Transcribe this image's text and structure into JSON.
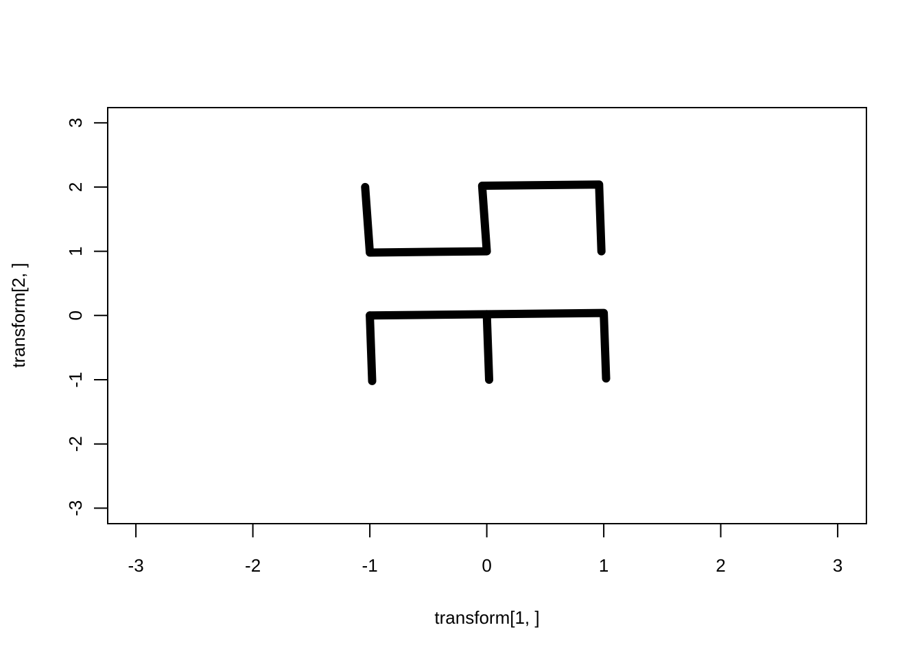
{
  "chart_data": {
    "type": "line",
    "title": "",
    "xlabel": "transform[1, ]",
    "ylabel": "transform[2, ]",
    "xlim": [
      -3,
      3
    ],
    "ylim": [
      -3,
      3
    ],
    "x_ticks": [
      "-3",
      "-2",
      "-1",
      "0",
      "1",
      "2",
      "3"
    ],
    "y_ticks": [
      "-3",
      "-2",
      "-1",
      "0",
      "1",
      "2",
      "3"
    ],
    "grid": false,
    "legend": "none",
    "line_color": "#000000",
    "series": [
      {
        "points": [
          {
            "x": -1.04,
            "y": 2.0
          },
          {
            "x": -1.0,
            "y": 0.98
          },
          {
            "x": 0.0,
            "y": 1.0
          },
          {
            "x": -0.04,
            "y": 2.02
          },
          {
            "x": 0.96,
            "y": 2.04
          },
          {
            "x": 0.98,
            "y": 1.0
          }
        ]
      },
      {
        "points": [
          {
            "x": -1.0,
            "y": 0.0
          },
          {
            "x": 1.0,
            "y": 0.04
          },
          {
            "x": 1.02,
            "y": -0.98
          }
        ]
      },
      {
        "points": [
          {
            "x": -1.0,
            "y": 0.0
          },
          {
            "x": -0.98,
            "y": -1.02
          }
        ]
      },
      {
        "points": [
          {
            "x": 0.0,
            "y": 0.02
          },
          {
            "x": 0.02,
            "y": -1.0
          }
        ]
      }
    ]
  }
}
